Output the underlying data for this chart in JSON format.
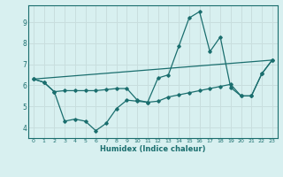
{
  "title": "",
  "xlabel": "Humidex (Indice chaleur)",
  "bg_color": "#d8f0f0",
  "grid_color": "#c8dede",
  "line_color": "#1a6e6e",
  "xlim": [
    -0.5,
    23.5
  ],
  "ylim": [
    3.5,
    9.8
  ],
  "xticks": [
    0,
    1,
    2,
    3,
    4,
    5,
    6,
    7,
    8,
    9,
    10,
    11,
    12,
    13,
    14,
    15,
    16,
    17,
    18,
    19,
    20,
    21,
    22,
    23
  ],
  "yticks": [
    4,
    5,
    6,
    7,
    8,
    9
  ],
  "line1_x": [
    0,
    1,
    2,
    3,
    4,
    5,
    6,
    7,
    8,
    9,
    10,
    11,
    12,
    13,
    14,
    15,
    16,
    17,
    18,
    19,
    20,
    21,
    22,
    23
  ],
  "line1_y": [
    6.3,
    6.15,
    5.7,
    4.3,
    4.4,
    4.3,
    3.85,
    4.2,
    4.9,
    5.3,
    5.25,
    5.2,
    6.35,
    6.5,
    7.85,
    9.2,
    9.5,
    7.6,
    8.3,
    5.9,
    5.5,
    5.5,
    6.55,
    7.2
  ],
  "line2_x": [
    0,
    1,
    2,
    3,
    4,
    5,
    6,
    7,
    8,
    9,
    10,
    11,
    12,
    13,
    14,
    15,
    16,
    17,
    18,
    19,
    20,
    21,
    22,
    23
  ],
  "line2_y": [
    6.3,
    6.15,
    5.7,
    5.75,
    5.75,
    5.75,
    5.75,
    5.8,
    5.85,
    5.85,
    5.3,
    5.2,
    5.25,
    5.45,
    5.55,
    5.65,
    5.75,
    5.85,
    5.95,
    6.05,
    5.5,
    5.5,
    6.55,
    7.2
  ],
  "line3_x": [
    0,
    23
  ],
  "line3_y": [
    6.3,
    7.2
  ]
}
